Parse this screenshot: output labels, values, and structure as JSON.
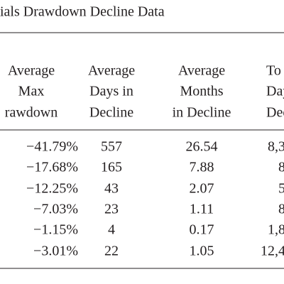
{
  "header": {
    "title": "ials Drawdown Decline Data"
  },
  "table": {
    "columns": [
      [
        "Average",
        "Max",
        "rawdown"
      ],
      [
        "Average",
        "Days in",
        "Decline"
      ],
      [
        "Average",
        "Months",
        "in Decline"
      ],
      [
        "To",
        "Day",
        "Dec"
      ]
    ],
    "rows": [
      [
        "−41.79%",
        "557",
        "26.54",
        "8,3"
      ],
      [
        "−17.68%",
        "165",
        "7.88",
        "8"
      ],
      [
        "−12.25%",
        "43",
        "2.07",
        "5"
      ],
      [
        "−7.03%",
        "23",
        "1.11",
        "8"
      ],
      [
        "−1.15%",
        "4",
        "0.17",
        "1,8"
      ],
      [
        "−3.01%",
        "22",
        "1.05",
        "12,4"
      ]
    ]
  }
}
